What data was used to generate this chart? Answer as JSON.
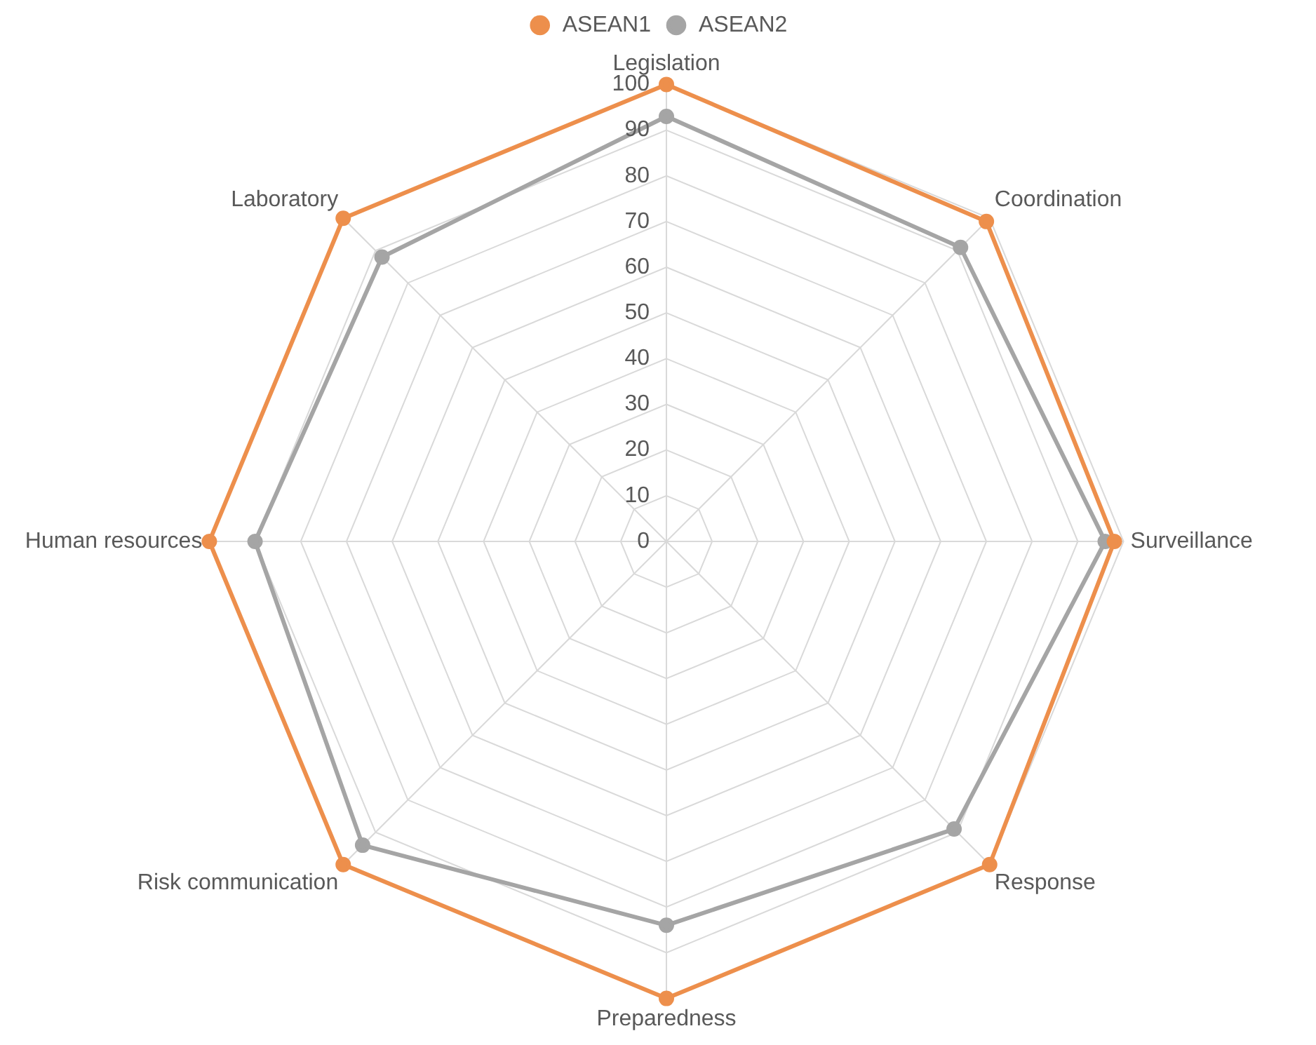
{
  "chart_data": {
    "type": "radar",
    "categories": [
      "Legislation",
      "Coordination",
      "Surveillance",
      "Response",
      "Preparedness",
      "Risk communication",
      "Human resources",
      "Laboratory"
    ],
    "series": [
      {
        "name": "ASEAN1",
        "color": "#ed8f4c",
        "values": [
          100,
          99,
          98,
          100,
          100,
          100,
          100,
          100
        ]
      },
      {
        "name": "ASEAN2",
        "color": "#a5a5a5",
        "values": [
          93,
          91,
          96,
          89,
          84,
          94,
          90,
          88
        ]
      }
    ],
    "ylim": [
      0,
      100
    ],
    "yticks": [
      0,
      10,
      20,
      30,
      40,
      50,
      60,
      70,
      80,
      90,
      100
    ],
    "grid": true,
    "legend": "top",
    "marker": "circle",
    "line_style": "solid"
  }
}
